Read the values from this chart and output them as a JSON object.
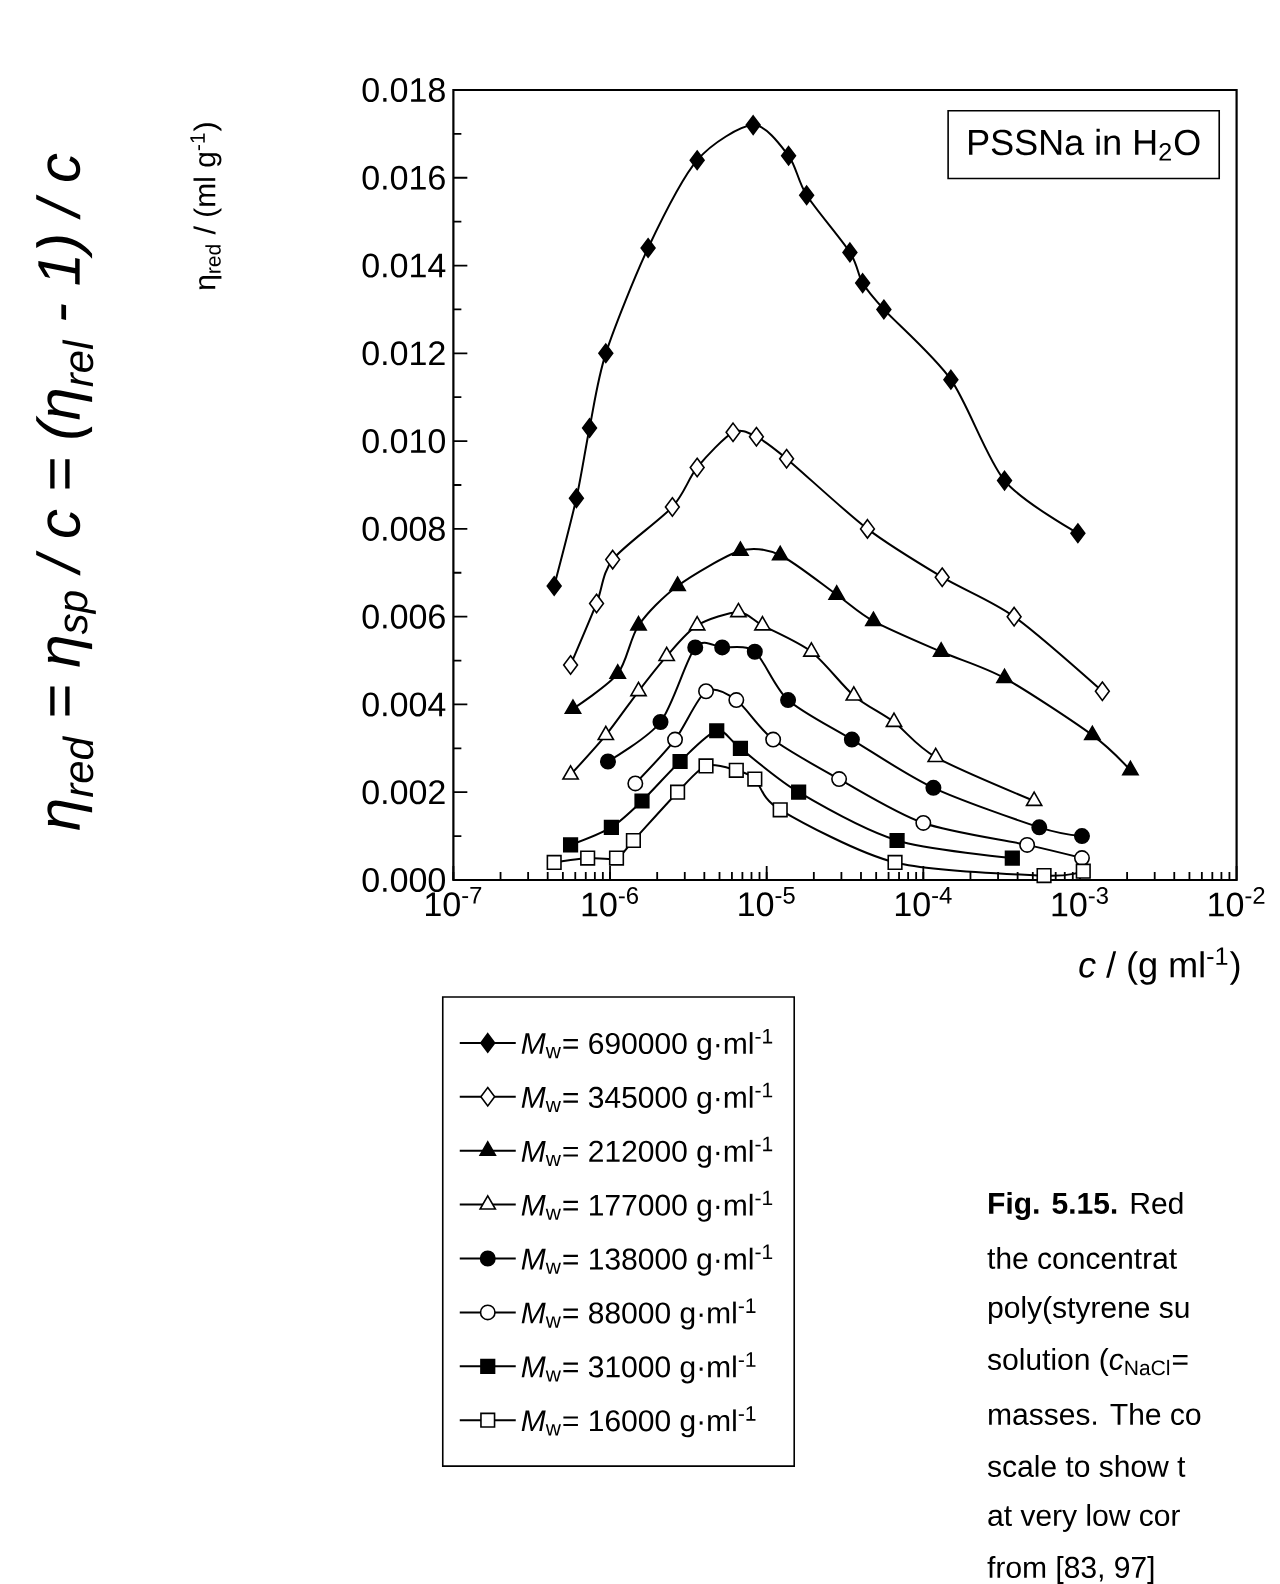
{
  "chart_data": {
    "type": "line",
    "xlabel": "*c* / (g ml$^{-1}$)",
    "ylabel": "η$_{red}$ / (ml g$^{-1}$)",
    "log": "x",
    "xlim": [
      1e-07,
      0.01
    ],
    "xticks": [
      {
        "value": 1e-07,
        "label": "10$^{-7}$"
      },
      {
        "value": 1e-06,
        "label": "10$^{-6}$"
      },
      {
        "value": 1e-05,
        "label": "10$^{-5}$"
      },
      {
        "value": 0.0001,
        "label": "10$^{-4}$"
      },
      {
        "value": 0.001,
        "label": "10$^{-3}$"
      },
      {
        "value": 0.01,
        "label": "10$^{-2}$"
      }
    ],
    "ylim": [
      0,
      0.018
    ],
    "yticks": [
      {
        "value": 0,
        "label": "0.000"
      },
      {
        "value": 0.002,
        "label": "0.002"
      },
      {
        "value": 0.004,
        "label": "0.004"
      },
      {
        "value": 0.006,
        "label": "0.006"
      },
      {
        "value": 0.008,
        "label": "0.008"
      },
      {
        "value": 0.01,
        "label": "0.010"
      },
      {
        "value": 0.012,
        "label": "0.012"
      },
      {
        "value": 0.014,
        "label": "0.014"
      },
      {
        "value": 0.016,
        "label": "0.016"
      },
      {
        "value": 0.018,
        "label": "0.018"
      }
    ],
    "legend": "bottom left",
    "annotations": [
      "η$_{red}$ = η$_{sp}$ / c = (η$_{rel}$ - 1) / c",
      "PSSNa in H$_{2}$O",
      "**Fig. 5.15.** Red",
      "the concentrat",
      "poly(styrene su",
      "solution (*c*$_{NaCl}$=",
      "masses. The co",
      "scale to show t",
      "at very low cor",
      "from [83, 97]"
    ],
    "series": [
      {
        "name": "*M*$_{w}$= 690000 g·ml$^{-1}$",
        "color": "#000000",
        "marker": "diamond",
        "x": [
          4.4e-07,
          6.1e-07,
          7.4e-07,
          9.4e-07,
          1.75e-06,
          3.6e-06,
          8.2e-06,
          1.38e-05,
          1.8e-05,
          3.4e-05,
          4.1e-05,
          5.6e-05,
          0.00015,
          0.00033,
          0.00097
        ],
        "values": [
          0.0067,
          0.0087,
          0.0103,
          0.012,
          0.0144,
          0.0164,
          0.0172,
          0.0165,
          0.0156,
          0.0143,
          0.0136,
          0.013,
          0.0114,
          0.0091,
          0.0079
        ]
      },
      {
        "name": "*M*$_{w}$= 345000 g·ml$^{-1}$",
        "color": "#000000",
        "marker": "diamond",
        "x": [
          5.6e-07,
          8.2e-07,
          1.04e-06,
          2.5e-06,
          3.6e-06,
          6.1e-06,
          8.6e-06,
          1.34e-05,
          4.4e-05,
          0.000132,
          0.00038,
          0.00139
        ],
        "values": [
          0.0049,
          0.0063,
          0.0073,
          0.0085,
          0.0094,
          0.0102,
          0.0101,
          0.0096,
          0.008,
          0.0069,
          0.006,
          0.0043
        ]
      },
      {
        "name": "*M*$_{w}$= 212000 g·ml$^{-1}$",
        "color": "#000000",
        "marker": "triangle",
        "x": [
          5.8e-07,
          1.12e-06,
          1.52e-06,
          2.7e-06,
          6.8e-06,
          1.22e-05,
          2.8e-05,
          4.8e-05,
          0.00013,
          0.00033,
          0.0012,
          0.0021
        ],
        "values": [
          0.0039,
          0.0047,
          0.0058,
          0.0067,
          0.0075,
          0.0074,
          0.0065,
          0.0059,
          0.0052,
          0.0046,
          0.0033,
          0.0025
        ]
      },
      {
        "name": "*M*$_{w}$= 177000 g·ml$^{-1}$",
        "color": "#000000",
        "marker": "triangle",
        "x": [
          5.6e-07,
          9.4e-07,
          1.52e-06,
          2.3e-06,
          3.6e-06,
          6.6e-06,
          9.4e-06,
          1.93e-05,
          3.6e-05,
          6.5e-05,
          0.00012,
          0.00051
        ],
        "values": [
          0.0024,
          0.0033,
          0.0043,
          0.0051,
          0.0058,
          0.0061,
          0.0058,
          0.0052,
          0.0042,
          0.0036,
          0.0028,
          0.0018
        ]
      },
      {
        "name": "*M*$_{w}$= 138000 g·ml$^{-1}$",
        "color": "#000000",
        "marker": "circle",
        "x": [
          9.7e-07,
          2.1e-06,
          3.5e-06,
          5.2e-06,
          8.4e-06,
          1.37e-05,
          3.5e-05,
          0.000116,
          0.00055,
          0.00103
        ],
        "values": [
          0.0027,
          0.0036,
          0.0053,
          0.0053,
          0.0052,
          0.0041,
          0.0032,
          0.0021,
          0.0012,
          0.001
        ]
      },
      {
        "name": "*M*$_{w}$= 88000 g·ml$^{-1}$",
        "color": "#000000",
        "marker": "circle",
        "x": [
          1.45e-06,
          2.6e-06,
          4.1e-06,
          6.4e-06,
          1.1e-05,
          2.9e-05,
          0.0001,
          0.00046,
          0.00103
        ],
        "values": [
          0.0022,
          0.0032,
          0.0043,
          0.0041,
          0.0032,
          0.0023,
          0.0013,
          0.0008,
          0.0005
        ]
      },
      {
        "name": "*M*$_{w}$= 31000 g·ml$^{-1}$",
        "color": "#000000",
        "marker": "square",
        "x": [
          5.6e-07,
          1.02e-06,
          1.6e-06,
          2.8e-06,
          4.8e-06,
          6.8e-06,
          1.6e-05,
          6.8e-05,
          0.00037
        ],
        "values": [
          0.0008,
          0.0012,
          0.0018,
          0.0027,
          0.0034,
          0.003,
          0.002,
          0.0009,
          0.0005
        ]
      },
      {
        "name": "*M*$_{w}$= 16000 g·ml$^{-1}$",
        "color": "#000000",
        "marker": "square",
        "x": [
          4.4e-07,
          7.2e-07,
          1.1e-06,
          1.41e-06,
          2.7e-06,
          4.1e-06,
          6.4e-06,
          8.4e-06,
          1.22e-05,
          6.6e-05,
          0.00059,
          0.00105
        ],
        "values": [
          0.0004,
          0.0005,
          0.0005,
          0.0009,
          0.002,
          0.0026,
          0.0025,
          0.0023,
          0.0016,
          0.0004,
          0.0001,
          0.0002
        ]
      }
    ]
  }
}
